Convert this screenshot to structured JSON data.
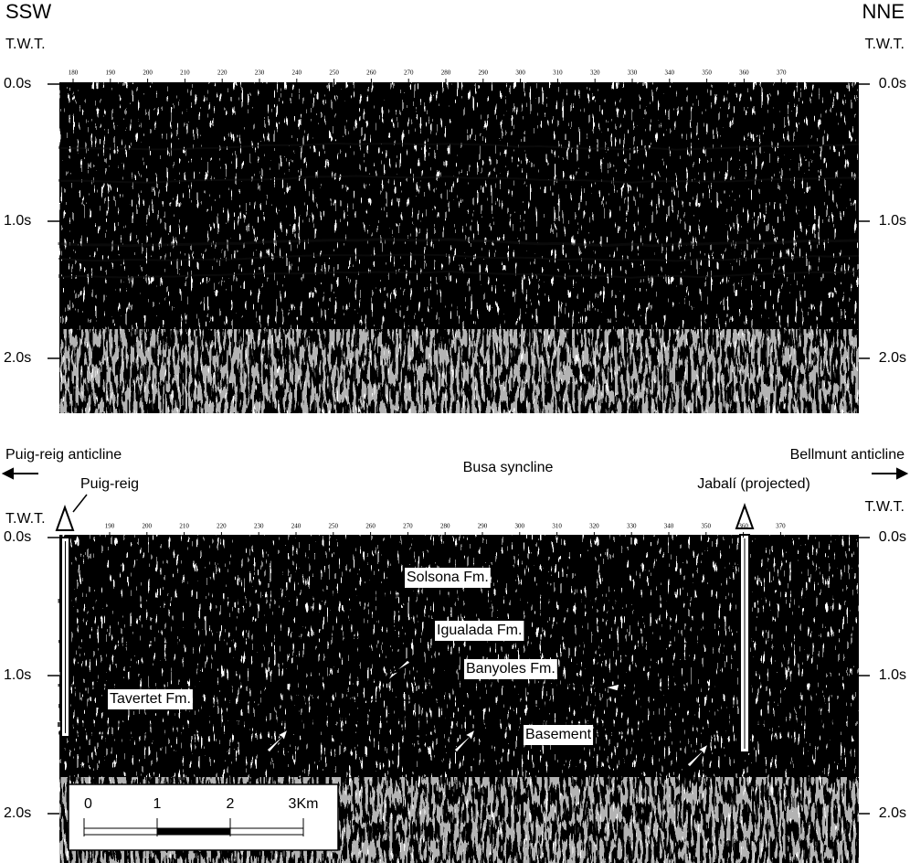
{
  "top_panel": {
    "left_direction": "SSW",
    "right_direction": "NNE",
    "left_axis_title": "T.W.T.",
    "right_axis_title": "T.W.T.",
    "time_labels": [
      "0.0s",
      "1.0s",
      "2.0s"
    ],
    "shotpoints": [
      180,
      190,
      200,
      210,
      220,
      230,
      240,
      250,
      260,
      270,
      280,
      290,
      300,
      310,
      320,
      330,
      340,
      350,
      360,
      370
    ]
  },
  "bottom_panel": {
    "left_structure": "Puig-reig anticline",
    "center_structure": "Busa syncline",
    "right_structure": "Bellmunt anticline",
    "left_axis_title": "T.W.T.",
    "right_axis_title": "T.W.T.",
    "wells": [
      "Puig-reig",
      "Jabalí (projected)"
    ],
    "time_labels": [
      "0.0s",
      "1.0s",
      "2.0s"
    ],
    "shotpoints": [
      190,
      200,
      210,
      220,
      230,
      240,
      250,
      260,
      270,
      280,
      290,
      300,
      310,
      320,
      330,
      340,
      350,
      360,
      370
    ],
    "formations": [
      "Solsona Fm.",
      "Igualada Fm.",
      "Banyoles Fm.",
      "Tavertet Fm.",
      "Basement"
    ],
    "scale_bar": [
      "0",
      "1",
      "2",
      "3Km"
    ]
  }
}
